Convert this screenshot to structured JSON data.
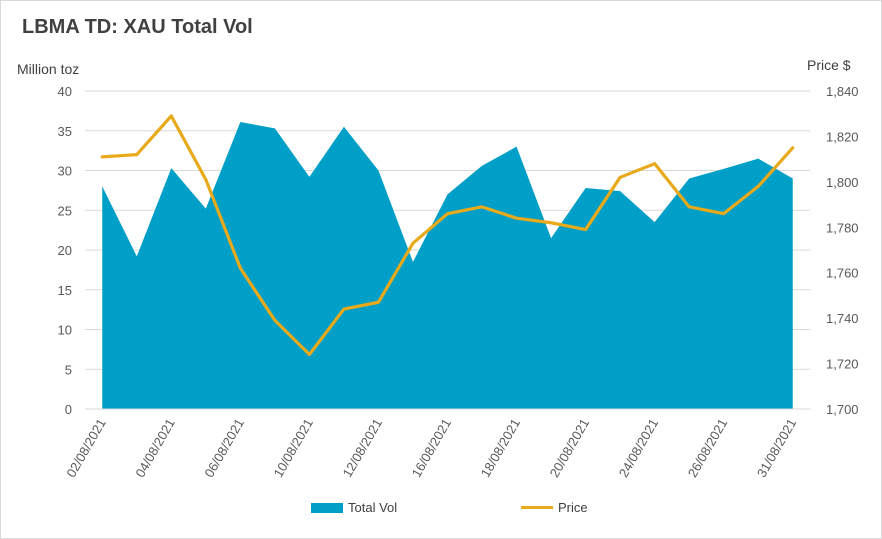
{
  "chart_data": {
    "type": "area",
    "title": "LBMA TD: XAU Total Vol",
    "y1label": "Million toz",
    "y2label": "Price $",
    "x": [
      "02/08/2021",
      "03/08/2021",
      "04/08/2021",
      "05/08/2021",
      "06/08/2021",
      "09/08/2021",
      "10/08/2021",
      "11/08/2021",
      "12/08/2021",
      "13/08/2021",
      "16/08/2021",
      "17/08/2021",
      "18/08/2021",
      "19/08/2021",
      "20/08/2021",
      "23/08/2021",
      "24/08/2021",
      "25/08/2021",
      "26/08/2021",
      "27/08/2021",
      "31/08/2021"
    ],
    "x_tick_labels": [
      "02/08/2021",
      "",
      "04/08/2021",
      "",
      "06/08/2021",
      "",
      "10/08/2021",
      "",
      "12/08/2021",
      "",
      "16/08/2021",
      "",
      "18/08/2021",
      "",
      "20/08/2021",
      "",
      "24/08/2021",
      "",
      "26/08/2021",
      "",
      "31/08/2021"
    ],
    "series": [
      {
        "name": "Total Vol",
        "type": "area",
        "axis": "left",
        "color": "#009fc8",
        "values": [
          28.0,
          19.2,
          30.3,
          25.2,
          36.1,
          35.3,
          29.2,
          35.5,
          30.0,
          18.5,
          27.0,
          30.6,
          33.0,
          21.5,
          27.8,
          27.4,
          23.5,
          29.0,
          30.2,
          31.5,
          29.0
        ]
      },
      {
        "name": "Price",
        "type": "line",
        "axis": "right",
        "color": "#e8a91a",
        "values": [
          1811,
          1812,
          1829,
          1801,
          1762,
          1739,
          1724,
          1744,
          1747,
          1773,
          1786,
          1789,
          1784,
          1782,
          1779,
          1802,
          1808,
          1789,
          1786,
          1798,
          1815
        ]
      }
    ],
    "y1_ticks": [
      "0",
      "5",
      "10",
      "15",
      "20",
      "25",
      "30",
      "35",
      "40"
    ],
    "y1lim": [
      0,
      40
    ],
    "y2_ticks": [
      "1,700",
      "1,720",
      "1,740",
      "1,760",
      "1,780",
      "1,800",
      "1,820",
      "1,840"
    ],
    "y2lim": [
      1700,
      1840
    ],
    "grid": true,
    "legend_position": "bottom"
  }
}
